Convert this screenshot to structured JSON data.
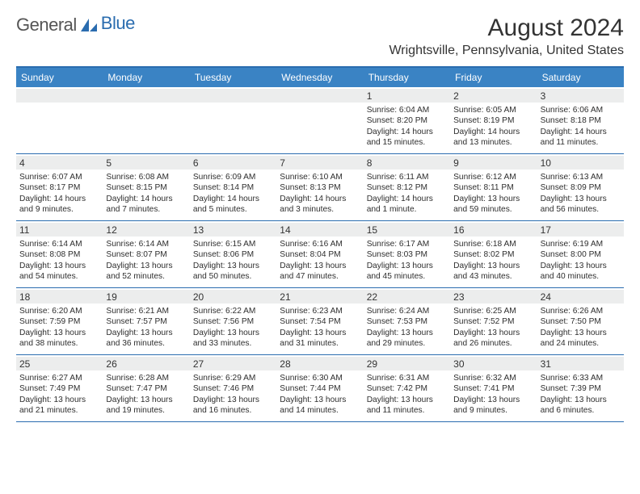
{
  "logo": {
    "part1": "General",
    "part2": "Blue"
  },
  "header": {
    "month_title": "August 2024",
    "location": "Wrightsville, Pennsylvania, United States"
  },
  "colors": {
    "header_bar": "#3a83c4",
    "rule": "#2a6caf",
    "date_bg": "#eceded",
    "text": "#2e2e2e"
  },
  "daynames": [
    "Sunday",
    "Monday",
    "Tuesday",
    "Wednesday",
    "Thursday",
    "Friday",
    "Saturday"
  ],
  "weeks": [
    [
      null,
      null,
      null,
      null,
      {
        "d": "1",
        "sr": "6:04 AM",
        "ss": "8:20 PM",
        "dl": "14 hours and 15 minutes."
      },
      {
        "d": "2",
        "sr": "6:05 AM",
        "ss": "8:19 PM",
        "dl": "14 hours and 13 minutes."
      },
      {
        "d": "3",
        "sr": "6:06 AM",
        "ss": "8:18 PM",
        "dl": "14 hours and 11 minutes."
      }
    ],
    [
      {
        "d": "4",
        "sr": "6:07 AM",
        "ss": "8:17 PM",
        "dl": "14 hours and 9 minutes."
      },
      {
        "d": "5",
        "sr": "6:08 AM",
        "ss": "8:15 PM",
        "dl": "14 hours and 7 minutes."
      },
      {
        "d": "6",
        "sr": "6:09 AM",
        "ss": "8:14 PM",
        "dl": "14 hours and 5 minutes."
      },
      {
        "d": "7",
        "sr": "6:10 AM",
        "ss": "8:13 PM",
        "dl": "14 hours and 3 minutes."
      },
      {
        "d": "8",
        "sr": "6:11 AM",
        "ss": "8:12 PM",
        "dl": "14 hours and 1 minute."
      },
      {
        "d": "9",
        "sr": "6:12 AM",
        "ss": "8:11 PM",
        "dl": "13 hours and 59 minutes."
      },
      {
        "d": "10",
        "sr": "6:13 AM",
        "ss": "8:09 PM",
        "dl": "13 hours and 56 minutes."
      }
    ],
    [
      {
        "d": "11",
        "sr": "6:14 AM",
        "ss": "8:08 PM",
        "dl": "13 hours and 54 minutes."
      },
      {
        "d": "12",
        "sr": "6:14 AM",
        "ss": "8:07 PM",
        "dl": "13 hours and 52 minutes."
      },
      {
        "d": "13",
        "sr": "6:15 AM",
        "ss": "8:06 PM",
        "dl": "13 hours and 50 minutes."
      },
      {
        "d": "14",
        "sr": "6:16 AM",
        "ss": "8:04 PM",
        "dl": "13 hours and 47 minutes."
      },
      {
        "d": "15",
        "sr": "6:17 AM",
        "ss": "8:03 PM",
        "dl": "13 hours and 45 minutes."
      },
      {
        "d": "16",
        "sr": "6:18 AM",
        "ss": "8:02 PM",
        "dl": "13 hours and 43 minutes."
      },
      {
        "d": "17",
        "sr": "6:19 AM",
        "ss": "8:00 PM",
        "dl": "13 hours and 40 minutes."
      }
    ],
    [
      {
        "d": "18",
        "sr": "6:20 AM",
        "ss": "7:59 PM",
        "dl": "13 hours and 38 minutes."
      },
      {
        "d": "19",
        "sr": "6:21 AM",
        "ss": "7:57 PM",
        "dl": "13 hours and 36 minutes."
      },
      {
        "d": "20",
        "sr": "6:22 AM",
        "ss": "7:56 PM",
        "dl": "13 hours and 33 minutes."
      },
      {
        "d": "21",
        "sr": "6:23 AM",
        "ss": "7:54 PM",
        "dl": "13 hours and 31 minutes."
      },
      {
        "d": "22",
        "sr": "6:24 AM",
        "ss": "7:53 PM",
        "dl": "13 hours and 29 minutes."
      },
      {
        "d": "23",
        "sr": "6:25 AM",
        "ss": "7:52 PM",
        "dl": "13 hours and 26 minutes."
      },
      {
        "d": "24",
        "sr": "6:26 AM",
        "ss": "7:50 PM",
        "dl": "13 hours and 24 minutes."
      }
    ],
    [
      {
        "d": "25",
        "sr": "6:27 AM",
        "ss": "7:49 PM",
        "dl": "13 hours and 21 minutes."
      },
      {
        "d": "26",
        "sr": "6:28 AM",
        "ss": "7:47 PM",
        "dl": "13 hours and 19 minutes."
      },
      {
        "d": "27",
        "sr": "6:29 AM",
        "ss": "7:46 PM",
        "dl": "13 hours and 16 minutes."
      },
      {
        "d": "28",
        "sr": "6:30 AM",
        "ss": "7:44 PM",
        "dl": "13 hours and 14 minutes."
      },
      {
        "d": "29",
        "sr": "6:31 AM",
        "ss": "7:42 PM",
        "dl": "13 hours and 11 minutes."
      },
      {
        "d": "30",
        "sr": "6:32 AM",
        "ss": "7:41 PM",
        "dl": "13 hours and 9 minutes."
      },
      {
        "d": "31",
        "sr": "6:33 AM",
        "ss": "7:39 PM",
        "dl": "13 hours and 6 minutes."
      }
    ]
  ],
  "labels": {
    "sunrise": "Sunrise: ",
    "sunset": "Sunset: ",
    "daylight": "Daylight: "
  }
}
